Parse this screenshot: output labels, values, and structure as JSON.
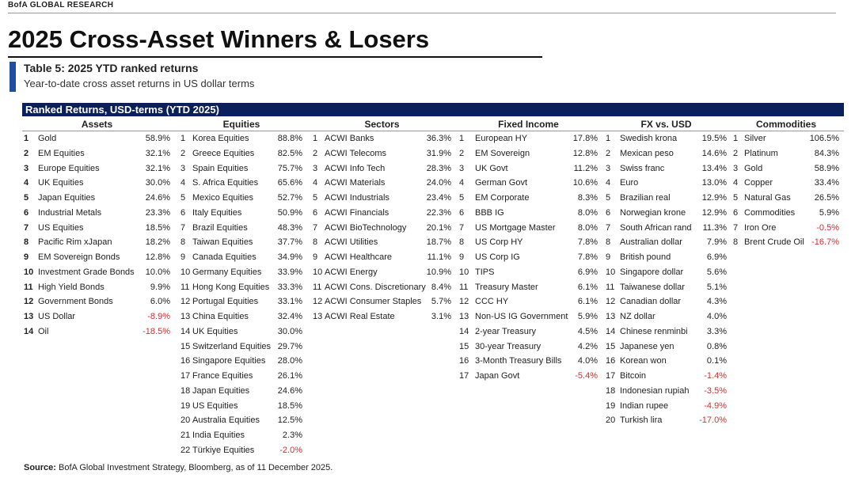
{
  "header": {
    "brand": "BofA GLOBAL RESEARCH",
    "title": "2025 Cross-Asset Winners & Losers"
  },
  "caption": {
    "title": "Table 5: 2025 YTD ranked returns",
    "subtitle": "Year-to-date cross asset returns in US dollar terms"
  },
  "table": {
    "title": "Ranked Returns, USD-terms (YTD 2025)",
    "columns": [
      {
        "name": "Assets",
        "rows": [
          [
            "1",
            "Gold",
            "58.9%"
          ],
          [
            "2",
            "EM Equities",
            "32.1%"
          ],
          [
            "3",
            "Europe Equities",
            "32.1%"
          ],
          [
            "4",
            "UK Equities",
            "30.0%"
          ],
          [
            "5",
            "Japan Equities",
            "24.6%"
          ],
          [
            "6",
            "Industrial Metals",
            "23.3%"
          ],
          [
            "7",
            "US Equities",
            "18.5%"
          ],
          [
            "8",
            "Pacific Rim xJapan",
            "18.2%"
          ],
          [
            "9",
            "EM Sovereign Bonds",
            "12.8%"
          ],
          [
            "10",
            "Investment Grade Bonds",
            "10.0%"
          ],
          [
            "11",
            "High Yield Bonds",
            "9.9%"
          ],
          [
            "12",
            "Government Bonds",
            "6.0%"
          ],
          [
            "13",
            "US Dollar",
            "-8.9%"
          ],
          [
            "14",
            "Oil",
            "-18.5%"
          ]
        ]
      },
      {
        "name": "Equities",
        "rows": [
          [
            "1",
            "Korea Equities",
            "88.8%"
          ],
          [
            "2",
            "Greece Equities",
            "82.5%"
          ],
          [
            "3",
            "Spain Equities",
            "75.7%"
          ],
          [
            "4",
            "S. Africa Equities",
            "65.6%"
          ],
          [
            "5",
            "Mexico Equities",
            "52.7%"
          ],
          [
            "6",
            "Italy Equities",
            "50.9%"
          ],
          [
            "7",
            "Brazil Equities",
            "48.3%"
          ],
          [
            "8",
            "Taiwan Equities",
            "37.7%"
          ],
          [
            "9",
            "Canada Equities",
            "34.9%"
          ],
          [
            "10",
            "Germany Equities",
            "33.9%"
          ],
          [
            "11",
            "Hong Kong Equities",
            "33.3%"
          ],
          [
            "12",
            "Portugal Equities",
            "33.1%"
          ],
          [
            "13",
            "China Equities",
            "32.4%"
          ],
          [
            "14",
            "UK Equities",
            "30.0%"
          ],
          [
            "15",
            "Switzerland Equities",
            "29.7%"
          ],
          [
            "16",
            "Singapore Equities",
            "28.0%"
          ],
          [
            "17",
            "France Equities",
            "26.1%"
          ],
          [
            "18",
            "Japan Equities",
            "24.6%"
          ],
          [
            "19",
            "US Equities",
            "18.5%"
          ],
          [
            "20",
            "Australia Equities",
            "12.5%"
          ],
          [
            "21",
            "India Equities",
            "2.3%"
          ],
          [
            "22",
            "Türkiye Equities",
            "-2.0%"
          ]
        ]
      },
      {
        "name": "Sectors",
        "rows": [
          [
            "1",
            "ACWI Banks",
            "36.3%"
          ],
          [
            "2",
            "ACWI Telecoms",
            "31.9%"
          ],
          [
            "3",
            "ACWI Info Tech",
            "28.3%"
          ],
          [
            "4",
            "ACWI Materials",
            "24.0%"
          ],
          [
            "5",
            "ACWI Industrials",
            "23.4%"
          ],
          [
            "6",
            "ACWI Financials",
            "22.3%"
          ],
          [
            "7",
            "ACWI BioTechnology",
            "20.1%"
          ],
          [
            "8",
            "ACWI Utilities",
            "18.7%"
          ],
          [
            "9",
            "ACWI Healthcare",
            "11.1%"
          ],
          [
            "10",
            "ACWI Energy",
            "10.9%"
          ],
          [
            "11",
            "ACWI Cons. Discretionary",
            "8.4%"
          ],
          [
            "12",
            "ACWI Consumer Staples",
            "5.7%"
          ],
          [
            "13",
            "ACWI Real Estate",
            "3.1%"
          ]
        ]
      },
      {
        "name": "Fixed Income",
        "rows": [
          [
            "1",
            "European HY",
            "17.8%"
          ],
          [
            "2",
            "EM Sovereign",
            "12.8%"
          ],
          [
            "3",
            "UK Govt",
            "11.2%"
          ],
          [
            "4",
            "German Govt",
            "10.6%"
          ],
          [
            "5",
            "EM Corporate",
            "8.3%"
          ],
          [
            "6",
            "BBB IG",
            "8.0%"
          ],
          [
            "7",
            "US Mortgage Master",
            "8.0%"
          ],
          [
            "8",
            "US Corp HY",
            "7.8%"
          ],
          [
            "9",
            "US Corp IG",
            "7.8%"
          ],
          [
            "10",
            "TIPS",
            "6.9%"
          ],
          [
            "11",
            "Treasury Master",
            "6.1%"
          ],
          [
            "12",
            "CCC HY",
            "6.1%"
          ],
          [
            "13",
            "Non-US IG Government",
            "5.9%"
          ],
          [
            "14",
            "2-year Treasury",
            "4.5%"
          ],
          [
            "15",
            "30-year Treasury",
            "4.2%"
          ],
          [
            "16",
            "3-Month Treasury Bills",
            "4.0%"
          ],
          [
            "17",
            "Japan Govt",
            "-5.4%"
          ]
        ]
      },
      {
        "name": "FX vs. USD",
        "rows": [
          [
            "1",
            "Swedish krona",
            "19.5%"
          ],
          [
            "2",
            "Mexican peso",
            "14.6%"
          ],
          [
            "3",
            "Swiss franc",
            "13.4%"
          ],
          [
            "4",
            "Euro",
            "13.0%"
          ],
          [
            "5",
            "Brazilian real",
            "12.9%"
          ],
          [
            "6",
            "Norwegian krone",
            "12.9%"
          ],
          [
            "7",
            "South African rand",
            "11.3%"
          ],
          [
            "8",
            "Australian dollar",
            "7.9%"
          ],
          [
            "9",
            "British pound",
            "6.9%"
          ],
          [
            "10",
            "Singapore dollar",
            "5.6%"
          ],
          [
            "11",
            "Taiwanese dollar",
            "5.1%"
          ],
          [
            "12",
            "Canadian dollar",
            "4.3%"
          ],
          [
            "13",
            "NZ dollar",
            "4.0%"
          ],
          [
            "14",
            "Chinese renminbi",
            "3.3%"
          ],
          [
            "15",
            "Japanese yen",
            "0.8%"
          ],
          [
            "16",
            "Korean won",
            "0.1%"
          ],
          [
            "17",
            "Bitcoin",
            "-1.4%"
          ],
          [
            "18",
            "Indonesian rupiah",
            "-3.5%"
          ],
          [
            "19",
            "Indian rupee",
            "-4.9%"
          ],
          [
            "20",
            "Turkish lira",
            "-17.0%"
          ]
        ]
      },
      {
        "name": "Commodities",
        "rows": [
          [
            "1",
            "Silver",
            "106.5%"
          ],
          [
            "2",
            "Platinum",
            "84.3%"
          ],
          [
            "3",
            "Gold",
            "58.9%"
          ],
          [
            "4",
            "Copper",
            "33.4%"
          ],
          [
            "5",
            "Natural Gas",
            "26.5%"
          ],
          [
            "6",
            "Commodities",
            "5.9%"
          ],
          [
            "7",
            "Iron Ore",
            "-0.5%"
          ],
          [
            "8",
            "Brent Crude Oil",
            "-16.7%"
          ]
        ]
      }
    ]
  },
  "source": {
    "label": "Source:",
    "text": "BofA Global Investment Strategy, Bloomberg, as of 11 December 2025."
  }
}
